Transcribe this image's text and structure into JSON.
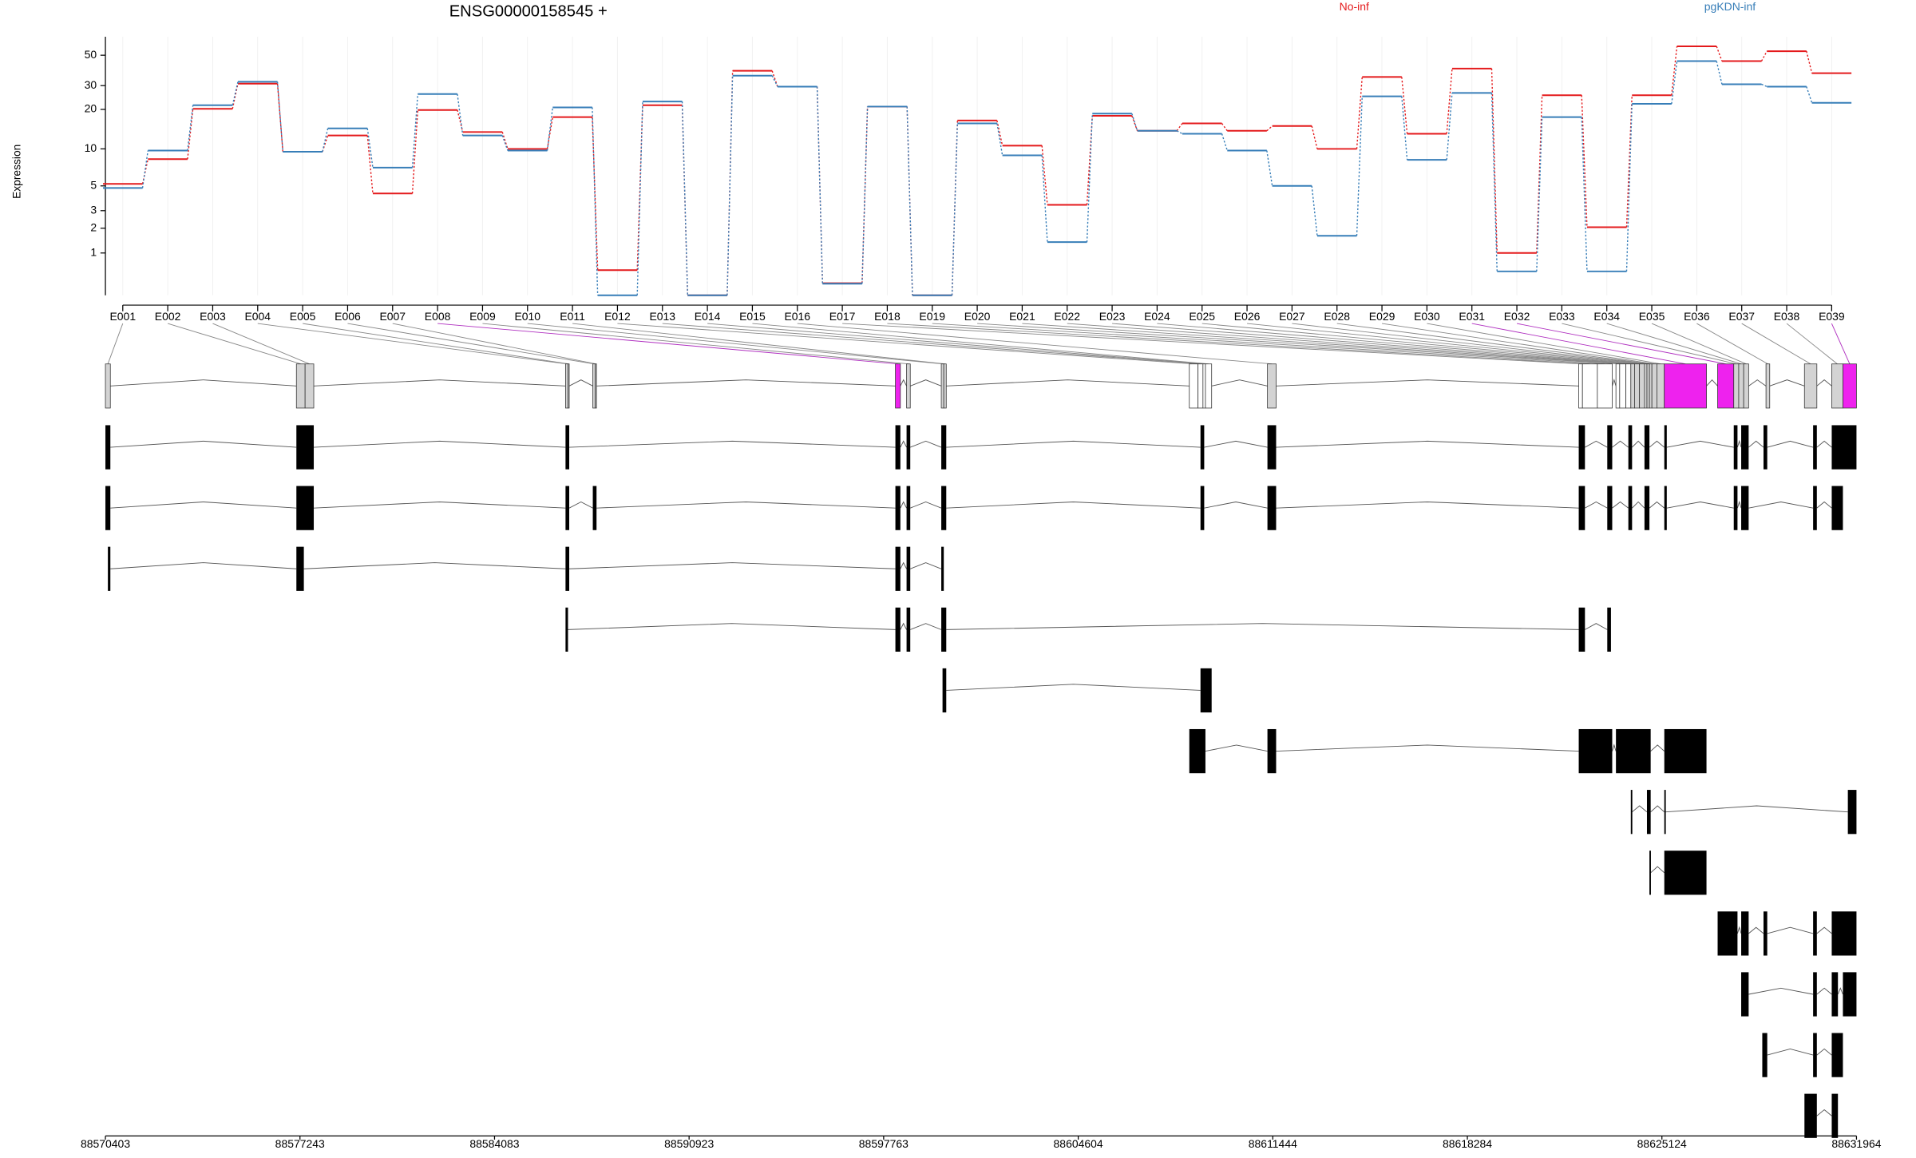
{
  "chart_data": {
    "type": "line",
    "title": "ENSG00000158545 +",
    "ylabel": "Expression",
    "categories": [
      "E001",
      "E002",
      "E003",
      "E004",
      "E005",
      "E006",
      "E007",
      "E008",
      "E009",
      "E010",
      "E011",
      "E012",
      "E013",
      "E014",
      "E015",
      "E016",
      "E017",
      "E018",
      "E019",
      "E020",
      "E021",
      "E022",
      "E023",
      "E024",
      "E025",
      "E026",
      "E027",
      "E028",
      "E029",
      "E030",
      "E031",
      "E032",
      "E033",
      "E034",
      "E035",
      "E036",
      "E037",
      "E038",
      "E039"
    ],
    "series": [
      {
        "name": "No-inf",
        "color": "#e41a1c",
        "values": [
          5.2,
          8.3,
          20.2,
          31,
          9.5,
          12.7,
          4.3,
          19.8,
          13.5,
          10,
          17.5,
          0.51,
          21.5,
          0,
          38.5,
          29.5,
          0.22,
          21,
          0,
          16.5,
          10.6,
          3.4,
          17.9,
          13.8,
          15.7,
          13.8,
          15,
          10,
          34.7,
          13.1,
          40,
          1.0,
          25.5,
          2.05,
          25.5,
          58,
          45.3,
          53.5,
          37
        ]
      },
      {
        "name": "pgKDN-inf",
        "color": "#377eb8",
        "values": [
          4.8,
          9.7,
          21.5,
          32,
          9.5,
          14.4,
          7.1,
          26,
          12.7,
          9.7,
          20.7,
          0,
          22.9,
          0,
          35.5,
          29.5,
          0.21,
          21,
          0,
          15.7,
          8.9,
          1.39,
          18.6,
          13.8,
          13.1,
          9.7,
          5.0,
          1.65,
          25,
          8.2,
          26.5,
          0.48,
          17.5,
          0.48,
          22,
          45.3,
          30.7,
          29.5,
          22.4
        ]
      }
    ],
    "ylim": [
      0,
      68
    ],
    "yticks": [
      1,
      2,
      3,
      5,
      10,
      20,
      30,
      50
    ],
    "yscale": "log10(x+1)",
    "grid": true,
    "gene_model": {
      "xlim": [
        88570403,
        88631964
      ],
      "xticks": [
        88570403,
        88577243,
        88584083,
        88590923,
        88597763,
        88604604,
        88611444,
        88618284,
        88625124,
        88631964
      ],
      "highlight_color": "#ee22ee",
      "exon_ranges": [
        [
          88570403,
          88570577
        ],
        [
          88577117,
          88577423
        ],
        [
          88577423,
          88577728
        ],
        [
          88586579,
          88586666
        ],
        [
          88586666,
          88586709
        ],
        [
          88587538,
          88587625
        ],
        [
          88587625,
          88587669
        ],
        [
          88598176,
          88598351
        ],
        [
          88598569,
          88598699
        ],
        [
          88599789,
          88599877
        ],
        [
          88599877,
          88599964
        ],
        [
          88608509,
          88608815
        ],
        [
          88608815,
          88608989
        ],
        [
          88608989,
          88609076
        ],
        [
          88609076,
          88609294
        ],
        [
          88611256,
          88611561
        ],
        [
          88622200,
          88622331
        ],
        [
          88622331,
          88622854
        ],
        [
          88622854,
          88623377
        ],
        [
          88623508,
          88623639
        ],
        [
          88623639,
          88623857
        ],
        [
          88623857,
          88624031
        ],
        [
          88624031,
          88624162
        ],
        [
          88624162,
          88624336
        ],
        [
          88624336,
          88624511
        ],
        [
          88624511,
          88624598
        ],
        [
          88624598,
          88624685
        ],
        [
          88624685,
          88624772
        ],
        [
          88624772,
          88624947
        ],
        [
          88624947,
          88625208
        ],
        [
          88625208,
          88626691
        ],
        [
          88627083,
          88627650
        ],
        [
          88627650,
          88627824
        ],
        [
          88627824,
          88627999
        ],
        [
          88627999,
          88628173
        ],
        [
          88628783,
          88628914
        ],
        [
          88630135,
          88630571
        ],
        [
          88631094,
          88631487
        ],
        [
          88631487,
          88631964
        ]
      ],
      "exon_colors": [
        "#d3d3d3",
        "#d3d3d3",
        "#d3d3d3",
        "#d3d3d3",
        "#d3d3d3",
        "#d3d3d3",
        "#d3d3d3",
        "#ee22ee",
        "#d3d3d3",
        "#d3d3d3",
        "#d3d3d3",
        "#ffffff",
        "#ffffff",
        "#ffffff",
        "#ffffff",
        "#d3d3d3",
        "#ffffff",
        "#ffffff",
        "#ffffff",
        "#ffffff",
        "#ffffff",
        "#ffffff",
        "#d3d3d3",
        "#d3d3d3",
        "#d3d3d3",
        "#d3d3d3",
        "#d3d3d3",
        "#d3d3d3",
        "#d3d3d3",
        "#d3d3d3",
        "#ee22ee",
        "#ee22ee",
        "#d3d3d3",
        "#d3d3d3",
        "#d3d3d3",
        "#d3d3d3",
        "#d3d3d3",
        "#d3d3d3",
        "#ee22ee"
      ],
      "transcripts": [
        [
          [
            88570403,
            88570577
          ],
          [
            88577117,
            88577728
          ],
          [
            88586579,
            88586709
          ],
          [
            88598176,
            88598351
          ],
          [
            88598569,
            88598699
          ],
          [
            88599789,
            88599964
          ],
          [
            88608902,
            88609033
          ],
          [
            88611256,
            88611561
          ],
          [
            88622200,
            88622418
          ],
          [
            88623203,
            88623377
          ],
          [
            88623944,
            88624075
          ],
          [
            88624511,
            88624685
          ],
          [
            88625208,
            88625295
          ],
          [
            88627650,
            88627781
          ],
          [
            88627911,
            88628173
          ],
          [
            88628696,
            88628827
          ],
          [
            88630440,
            88630571
          ],
          [
            88631094,
            88631964
          ]
        ],
        [
          [
            88570403,
            88570577
          ],
          [
            88577117,
            88577728
          ],
          [
            88586579,
            88586709
          ],
          [
            88587538,
            88587669
          ],
          [
            88598176,
            88598351
          ],
          [
            88598569,
            88598699
          ],
          [
            88599789,
            88599964
          ],
          [
            88608902,
            88609033
          ],
          [
            88611256,
            88611561
          ],
          [
            88622200,
            88622418
          ],
          [
            88623203,
            88623377
          ],
          [
            88623944,
            88624075
          ],
          [
            88624511,
            88624685
          ],
          [
            88625208,
            88625295
          ],
          [
            88627650,
            88627781
          ],
          [
            88627911,
            88628173
          ],
          [
            88630440,
            88630571
          ],
          [
            88631094,
            88631487
          ]
        ],
        [
          [
            88570490,
            88570577
          ],
          [
            88577117,
            88577379
          ],
          [
            88586579,
            88586709
          ],
          [
            88598176,
            88598351
          ],
          [
            88598569,
            88598699
          ],
          [
            88599789,
            88599877
          ]
        ],
        [
          [
            88586579,
            88586666
          ],
          [
            88598176,
            88598351
          ],
          [
            88598569,
            88598699
          ],
          [
            88599789,
            88599964
          ],
          [
            88622200,
            88622418
          ],
          [
            88623203,
            88623333
          ]
        ],
        [
          [
            88599833,
            88599964
          ],
          [
            88608902,
            88609294
          ]
        ],
        [
          [
            88608509,
            88609076
          ],
          [
            88611256,
            88611561
          ],
          [
            88622200,
            88623377
          ],
          [
            88623508,
            88624729
          ],
          [
            88625208,
            88626691
          ]
        ],
        [
          [
            88624031,
            88624075
          ],
          [
            88624598,
            88624729
          ],
          [
            88625208,
            88625252
          ],
          [
            88631661,
            88631964
          ]
        ],
        [
          [
            88624685,
            88624729
          ],
          [
            88625208,
            88626691
          ]
        ],
        [
          [
            88627083,
            88627781
          ],
          [
            88627911,
            88628173
          ],
          [
            88628696,
            88628827
          ],
          [
            88630440,
            88630571
          ],
          [
            88631094,
            88631964
          ]
        ],
        [
          [
            88627911,
            88628173
          ],
          [
            88630440,
            88630571
          ],
          [
            88631094,
            88631312
          ],
          [
            88631487,
            88631964
          ]
        ],
        [
          [
            88628653,
            88628827
          ],
          [
            88630440,
            88630571
          ],
          [
            88631094,
            88631487
          ]
        ],
        [
          [
            88630135,
            88630571
          ],
          [
            88631094,
            88631312
          ]
        ]
      ]
    }
  }
}
